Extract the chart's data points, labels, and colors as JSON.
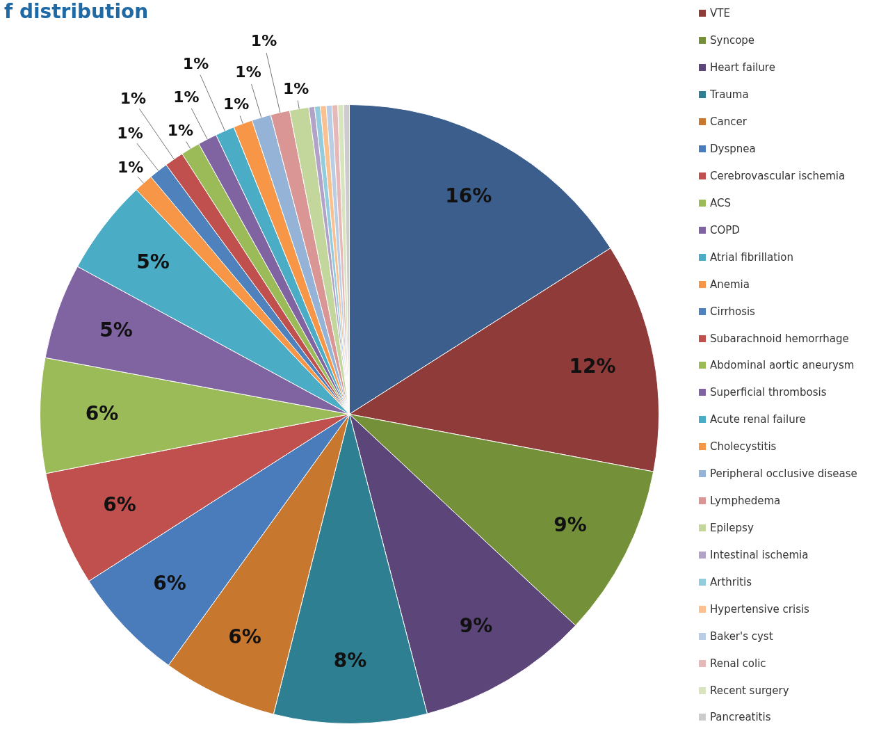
{
  "chart_data": {
    "type": "pie",
    "title": "f distribution",
    "categories": [
      null,
      "VTE",
      "Syncope",
      "Heart failure",
      "Trauma",
      "Cancer",
      "Dyspnea",
      "Cerebrovascular ischemia",
      "ACS",
      "COPD",
      "Atrial fibrillation",
      "Anemia",
      "Cirrhosis",
      "Subarachnoid hemorrhage",
      "Abdominal aortic aneurysm",
      "Superficial thrombosis",
      "Acute renal failure",
      "Cholecystitis",
      "Peripheral occlusive disease",
      "Lymphedema",
      "Epilepsy",
      "Intestinal ischemia",
      "Arthritis",
      "Hypertensive crisis",
      "Baker's cyst",
      "Renal colic",
      "Recent surgery",
      "Pancreatitis"
    ],
    "values": [
      16,
      12,
      9,
      9,
      8,
      6,
      6,
      6,
      6,
      5,
      5,
      1,
      1,
      1,
      1,
      1,
      1,
      1,
      1,
      1,
      1,
      0.3,
      0.3,
      0.3,
      0.3,
      0.3,
      0.3,
      0.3
    ],
    "value_labels": [
      "16%",
      "12%",
      "9%",
      "9%",
      "8%",
      "6%",
      "6%",
      "6%",
      "6%",
      "5%",
      "5%",
      "1%",
      "1%",
      "1%",
      "1%",
      "1%",
      "1%",
      "1%",
      "1%",
      "1%",
      "1%",
      null,
      null,
      null,
      null,
      null,
      null,
      null
    ],
    "colors": [
      "#3b5e8c",
      "#8e3b39",
      "#74913a",
      "#5c4679",
      "#2f7f92",
      "#c8772e",
      "#4a7cbb",
      "#c0504d",
      "#9bbb59",
      "#8064a2",
      "#4bacc6",
      "#f79646",
      "#4f81bd",
      "#c0504d",
      "#9bbb59",
      "#8064a2",
      "#4bacc6",
      "#f79646",
      "#95b3d7",
      "#d99694",
      "#c3d69b",
      "#b2a2c7",
      "#93cddd",
      "#fac090",
      "#b9cde5",
      "#e6b9b8",
      "#d7e4bd",
      "#cccccc"
    ],
    "legend": "right"
  }
}
